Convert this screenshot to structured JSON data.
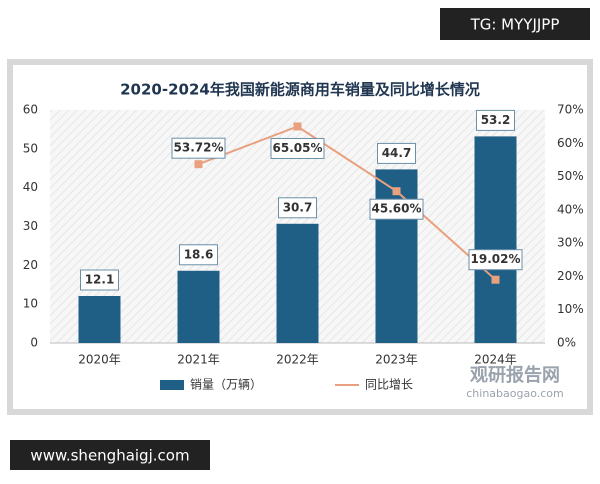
{
  "watermarks": {
    "top": "TG: MYYJJPP",
    "bottom": "www.shenghaigj.com",
    "brand": "观研报告网",
    "brand_url": "chinabaogao.com"
  },
  "chart_data": {
    "type": "bar",
    "title": "2020-2024年我国新能源商用车销量及同比增长情况",
    "categories": [
      "2020年",
      "2021年",
      "2022年",
      "2023年",
      "2024年"
    ],
    "series": [
      {
        "name": "销量（万辆）",
        "type": "bar",
        "color": "#1f5f86",
        "values": [
          12.1,
          18.6,
          30.7,
          44.7,
          53.2
        ]
      },
      {
        "name": "同比增长",
        "type": "line",
        "axis": "y2",
        "color": "#e8a07f",
        "values": [
          null,
          53.72,
          65.05,
          45.6,
          19.02
        ],
        "value_labels": [
          null,
          "53.72%",
          "65.05%",
          "45.60%",
          "19.02%"
        ]
      }
    ],
    "ylim": [
      0,
      60
    ],
    "yticks": [
      0,
      10,
      20,
      30,
      40,
      50,
      60
    ],
    "y2lim": [
      0,
      70
    ],
    "y2ticks": [
      {
        "value": 0,
        "label": "0%"
      },
      {
        "value": 10,
        "label": "10%"
      },
      {
        "value": 20,
        "label": "20%"
      },
      {
        "value": 30,
        "label": "30%"
      },
      {
        "value": 40,
        "label": "40%"
      },
      {
        "value": 50,
        "label": "50%"
      },
      {
        "value": 60,
        "label": "60%"
      },
      {
        "value": 70,
        "label": "70%"
      }
    ],
    "grid": false,
    "legend": "bottom"
  }
}
